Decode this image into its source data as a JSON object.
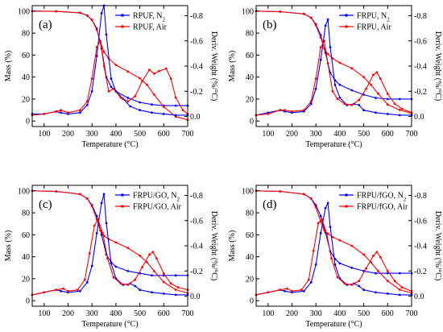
{
  "page": {
    "background": "#ffffff"
  },
  "colors": {
    "n2": "#0000ff",
    "air": "#ff0000",
    "axes": "#000000"
  },
  "chart_data": [
    {
      "type": "line",
      "panel_label": "(a)",
      "xlabel": "Temperature (°C)",
      "ylabel": "Mass (%)",
      "y2label": "Deriv. Weight (%/°C)",
      "xlim": [
        50,
        700
      ],
      "ylim": [
        -5,
        105
      ],
      "y2lim": [
        0.08,
        -0.88
      ],
      "xticks": [
        100,
        200,
        300,
        400,
        500,
        600,
        700
      ],
      "yticks": [
        0,
        20,
        40,
        60,
        80,
        100
      ],
      "y2ticks": [
        0.0,
        -0.2,
        -0.4,
        -0.6,
        -0.8
      ],
      "y2ticklabels": [
        "0.0",
        "-0.2",
        "-0.4",
        "-0.6",
        "-0.8"
      ],
      "legend": {
        "position": "top-right",
        "entries": [
          "RPUF, N2",
          "RPUF, Air"
        ]
      },
      "series": [
        {
          "name": "RPUF, N2",
          "kind": "mass",
          "axis": "left",
          "color": "#0000ff",
          "x": [
            50,
            150,
            250,
            280,
            300,
            320,
            340,
            360,
            380,
            400,
            450,
            500,
            550,
            600,
            650,
            700
          ],
          "y": [
            100,
            99.8,
            98.5,
            96,
            92,
            84,
            66,
            40,
            31,
            27,
            21,
            17,
            15,
            14,
            14,
            14
          ]
        },
        {
          "name": "RPUF, Air",
          "kind": "mass",
          "axis": "left",
          "color": "#ff0000",
          "x": [
            50,
            150,
            250,
            280,
            300,
            320,
            335,
            350,
            370,
            400,
            450,
            500,
            530,
            560,
            600,
            650,
            700
          ],
          "y": [
            100,
            99.8,
            98.5,
            96,
            92,
            83,
            72,
            63,
            57,
            51,
            45,
            39,
            33,
            24,
            13,
            4,
            1
          ]
        },
        {
          "name": "RPUF, N2",
          "kind": "deriv",
          "axis": "right",
          "color": "#0000ff",
          "x": [
            50,
            100,
            150,
            170,
            200,
            250,
            280,
            300,
            320,
            340,
            350,
            360,
            380,
            400,
            430,
            460,
            500,
            550,
            600,
            650,
            700
          ],
          "y": [
            -0.02,
            -0.02,
            -0.04,
            -0.03,
            -0.02,
            -0.03,
            -0.09,
            -0.2,
            -0.48,
            -0.82,
            -0.88,
            -0.65,
            -0.3,
            -0.2,
            -0.14,
            -0.08,
            -0.05,
            -0.03,
            -0.02,
            -0.01,
            -0.01
          ]
        },
        {
          "name": "RPUF, Air",
          "kind": "deriv",
          "axis": "right",
          "color": "#ff0000",
          "x": [
            50,
            100,
            150,
            170,
            200,
            250,
            280,
            300,
            320,
            335,
            350,
            370,
            390,
            420,
            450,
            480,
            510,
            540,
            560,
            580,
            610,
            630,
            650,
            680,
            700
          ],
          "y": [
            -0.01,
            -0.02,
            -0.04,
            -0.05,
            -0.03,
            -0.05,
            -0.12,
            -0.3,
            -0.55,
            -0.6,
            -0.4,
            -0.2,
            -0.22,
            -0.15,
            -0.12,
            -0.16,
            -0.28,
            -0.37,
            -0.34,
            -0.36,
            -0.38,
            -0.3,
            -0.15,
            -0.05,
            -0.02
          ]
        }
      ]
    },
    {
      "type": "line",
      "panel_label": "(b)",
      "xlabel": "Temperature (°C)",
      "ylabel": "Mass (%)",
      "y2label": "Deriv. Weight (%/°C)",
      "xlim": [
        50,
        700
      ],
      "ylim": [
        -5,
        105
      ],
      "y2lim": [
        0.08,
        -0.88
      ],
      "xticks": [
        100,
        200,
        300,
        400,
        500,
        600,
        700
      ],
      "yticks": [
        0,
        20,
        40,
        60,
        80,
        100
      ],
      "y2ticks": [
        0.0,
        -0.2,
        -0.4,
        -0.6,
        -0.8
      ],
      "y2ticklabels": [
        "0.0",
        "-0.2",
        "-0.4",
        "-0.6",
        "-0.8"
      ],
      "legend": {
        "position": "top-right",
        "entries": [
          "FRPU, N2",
          "FRPU, Air"
        ]
      },
      "series": [
        {
          "name": "FRPU, N2",
          "kind": "mass",
          "axis": "left",
          "color": "#0000ff",
          "x": [
            50,
            150,
            250,
            280,
            300,
            320,
            340,
            360,
            380,
            400,
            450,
            500,
            550,
            600,
            650,
            700
          ],
          "y": [
            100,
            99.5,
            97.5,
            94,
            88,
            78,
            62,
            44,
            37,
            33,
            28,
            24,
            21,
            20,
            20,
            20
          ]
        },
        {
          "name": "FRPU, Air",
          "kind": "mass",
          "axis": "left",
          "color": "#ff0000",
          "x": [
            50,
            150,
            250,
            280,
            300,
            320,
            335,
            350,
            370,
            400,
            450,
            500,
            530,
            560,
            600,
            650,
            700
          ],
          "y": [
            100,
            99.5,
            97.5,
            94,
            87,
            76,
            66,
            61,
            57,
            53,
            48,
            40,
            33,
            25,
            15,
            10,
            7
          ]
        },
        {
          "name": "FRPU, N2",
          "kind": "deriv",
          "axis": "right",
          "color": "#0000ff",
          "x": [
            50,
            100,
            150,
            170,
            200,
            250,
            280,
            300,
            320,
            340,
            350,
            360,
            380,
            400,
            430,
            460,
            480,
            500,
            550,
            600,
            650,
            700
          ],
          "y": [
            -0.01,
            -0.03,
            -0.05,
            -0.04,
            -0.03,
            -0.04,
            -0.1,
            -0.22,
            -0.45,
            -0.72,
            -0.77,
            -0.55,
            -0.25,
            -0.15,
            -0.09,
            -0.1,
            -0.09,
            -0.05,
            -0.03,
            -0.02,
            -0.01,
            -0.01
          ]
        },
        {
          "name": "FRPU, Air",
          "kind": "deriv",
          "axis": "right",
          "color": "#ff0000",
          "x": [
            50,
            100,
            150,
            170,
            200,
            250,
            280,
            300,
            320,
            335,
            350,
            370,
            390,
            420,
            450,
            480,
            510,
            540,
            555,
            570,
            600,
            630,
            660,
            700
          ],
          "y": [
            -0.01,
            -0.02,
            -0.05,
            -0.05,
            -0.04,
            -0.05,
            -0.12,
            -0.3,
            -0.55,
            -0.6,
            -0.42,
            -0.2,
            -0.14,
            -0.1,
            -0.09,
            -0.13,
            -0.22,
            -0.33,
            -0.35,
            -0.3,
            -0.18,
            -0.1,
            -0.06,
            -0.03
          ]
        }
      ]
    },
    {
      "type": "line",
      "panel_label": "(c)",
      "xlabel": "Temperature (°C)",
      "ylabel": "Mass (%)",
      "y2label": "Deriv. Weight (%/°C)",
      "xlim": [
        50,
        700
      ],
      "ylim": [
        -5,
        105
      ],
      "y2lim": [
        0.08,
        -0.88
      ],
      "xticks": [
        100,
        200,
        300,
        400,
        500,
        600,
        700
      ],
      "yticks": [
        0,
        20,
        40,
        60,
        80,
        100
      ],
      "y2ticks": [
        0.0,
        -0.2,
        -0.4,
        -0.6,
        -0.8
      ],
      "y2ticklabels": [
        "0.0",
        "-0.2",
        "-0.4",
        "-0.6",
        "-0.8"
      ],
      "legend": {
        "position": "top-right",
        "entries": [
          "FRPU/GO, N2",
          "FRPU/GO, Air"
        ]
      },
      "series": [
        {
          "name": "FRPU/GO, N2",
          "kind": "mass",
          "axis": "left",
          "color": "#0000ff",
          "x": [
            50,
            150,
            250,
            280,
            300,
            320,
            340,
            360,
            380,
            400,
            450,
            500,
            550,
            600,
            650,
            700
          ],
          "y": [
            100,
            99.5,
            97,
            93,
            87,
            77,
            60,
            42,
            35,
            31,
            27,
            25,
            23,
            23,
            23,
            23
          ]
        },
        {
          "name": "FRPU/GO, Air",
          "kind": "mass",
          "axis": "left",
          "color": "#ff0000",
          "x": [
            50,
            150,
            250,
            280,
            300,
            320,
            335,
            350,
            370,
            400,
            450,
            500,
            530,
            560,
            600,
            650,
            700
          ],
          "y": [
            100,
            99.5,
            97,
            93,
            86,
            74,
            64,
            59,
            56,
            53,
            48,
            41,
            35,
            27,
            17,
            10,
            7
          ]
        },
        {
          "name": "FRPU/GO, N2",
          "kind": "deriv",
          "axis": "right",
          "color": "#0000ff",
          "x": [
            50,
            100,
            150,
            170,
            200,
            250,
            280,
            300,
            320,
            340,
            350,
            360,
            380,
            400,
            430,
            460,
            480,
            500,
            550,
            600,
            650,
            700
          ],
          "y": [
            -0.01,
            -0.03,
            -0.05,
            -0.04,
            -0.03,
            -0.04,
            -0.11,
            -0.24,
            -0.5,
            -0.74,
            -0.81,
            -0.58,
            -0.26,
            -0.14,
            -0.09,
            -0.1,
            -0.08,
            -0.05,
            -0.03,
            -0.02,
            -0.01,
            -0.01
          ]
        },
        {
          "name": "FRPU/GO, Air",
          "kind": "deriv",
          "axis": "right",
          "color": "#ff0000",
          "x": [
            50,
            100,
            150,
            180,
            200,
            240,
            270,
            290,
            310,
            325,
            345,
            365,
            390,
            420,
            450,
            480,
            510,
            540,
            555,
            570,
            600,
            630,
            660,
            700
          ],
          "y": [
            -0.01,
            -0.03,
            -0.05,
            -0.06,
            -0.04,
            -0.05,
            -0.13,
            -0.34,
            -0.56,
            -0.61,
            -0.5,
            -0.3,
            -0.15,
            -0.1,
            -0.09,
            -0.13,
            -0.23,
            -0.33,
            -0.35,
            -0.3,
            -0.18,
            -0.1,
            -0.07,
            -0.05
          ]
        }
      ]
    },
    {
      "type": "line",
      "panel_label": "(d)",
      "xlabel": "Temperature (°C)",
      "ylabel": "Mass (%)",
      "y2label": "Deriv. Weight (%/°C)",
      "xlim": [
        50,
        700
      ],
      "ylim": [
        -5,
        105
      ],
      "y2lim": [
        0.08,
        -0.88
      ],
      "xticks": [
        100,
        200,
        300,
        400,
        500,
        600,
        700
      ],
      "yticks": [
        0,
        20,
        40,
        60,
        80,
        100
      ],
      "y2ticks": [
        0.0,
        -0.2,
        -0.4,
        -0.6,
        -0.8
      ],
      "y2ticklabels": [
        "0.0",
        "-0.2",
        "-0.4",
        "-0.6",
        "-0.8"
      ],
      "legend": {
        "position": "top-right",
        "entries": [
          "FRPU/fGO, N2",
          "FRPU/fGO, Air"
        ]
      },
      "series": [
        {
          "name": "FRPU/fGO, N2",
          "kind": "mass",
          "axis": "left",
          "color": "#0000ff",
          "x": [
            50,
            150,
            250,
            280,
            300,
            320,
            340,
            360,
            380,
            400,
            450,
            500,
            550,
            600,
            650,
            700
          ],
          "y": [
            100,
            99.5,
            97,
            93,
            87,
            77,
            62,
            45,
            38,
            34,
            30,
            27,
            25,
            25,
            25,
            25
          ]
        },
        {
          "name": "FRPU/fGO, Air",
          "kind": "mass",
          "axis": "left",
          "color": "#ff0000",
          "x": [
            50,
            150,
            250,
            280,
            300,
            320,
            335,
            350,
            370,
            400,
            450,
            500,
            530,
            560,
            600,
            650,
            700
          ],
          "y": [
            100,
            99.5,
            97,
            93,
            85,
            72,
            64,
            61,
            58,
            55,
            50,
            42,
            35,
            27,
            18,
            10,
            7
          ]
        },
        {
          "name": "FRPU/fGO, N2",
          "kind": "deriv",
          "axis": "right",
          "color": "#0000ff",
          "x": [
            50,
            100,
            150,
            170,
            200,
            250,
            280,
            300,
            320,
            340,
            350,
            360,
            380,
            400,
            430,
            460,
            480,
            500,
            550,
            600,
            650,
            700
          ],
          "y": [
            -0.01,
            -0.03,
            -0.05,
            -0.04,
            -0.03,
            -0.04,
            -0.11,
            -0.25,
            -0.5,
            -0.7,
            -0.74,
            -0.55,
            -0.25,
            -0.14,
            -0.09,
            -0.1,
            -0.08,
            -0.05,
            -0.03,
            -0.02,
            -0.01,
            -0.01
          ]
        },
        {
          "name": "FRPU/fGO, Air",
          "kind": "deriv",
          "axis": "right",
          "color": "#ff0000",
          "x": [
            50,
            100,
            150,
            180,
            200,
            240,
            270,
            290,
            310,
            325,
            345,
            365,
            390,
            420,
            450,
            480,
            510,
            540,
            555,
            570,
            600,
            630,
            660,
            700
          ],
          "y": [
            -0.01,
            -0.03,
            -0.05,
            -0.06,
            -0.04,
            -0.05,
            -0.13,
            -0.36,
            -0.58,
            -0.61,
            -0.5,
            -0.3,
            -0.15,
            -0.1,
            -0.09,
            -0.12,
            -0.22,
            -0.32,
            -0.35,
            -0.31,
            -0.2,
            -0.12,
            -0.07,
            -0.04
          ]
        }
      ]
    }
  ]
}
